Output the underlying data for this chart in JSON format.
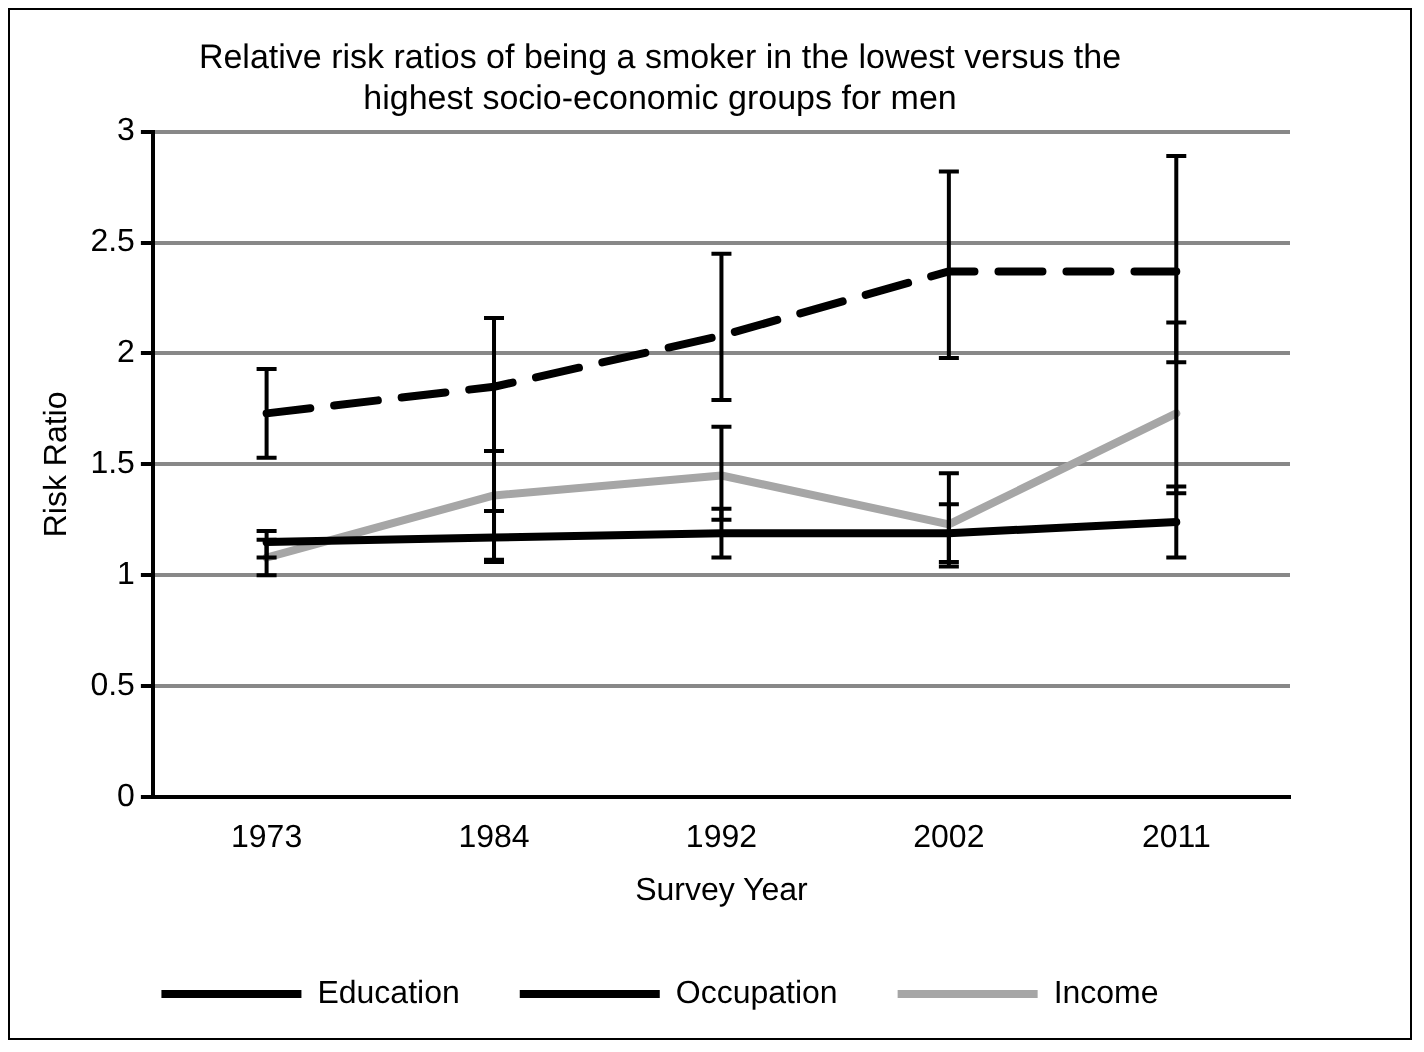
{
  "chart_data": {
    "type": "line",
    "title": "Relative risk ratios of being a smoker in the lowest versus the highest socio-economic groups for men",
    "xlabel": "Survey Year",
    "ylabel": "Risk Ratio",
    "categories": [
      "1973",
      "1984",
      "1992",
      "2002",
      "2011"
    ],
    "series": [
      {
        "name": "Education",
        "color": "#000000",
        "line_style": "dashed",
        "values": [
          1.73,
          1.85,
          2.08,
          2.37,
          2.37
        ],
        "errors": [
          [
            1.53,
            1.93
          ],
          [
            1.56,
            2.16
          ],
          [
            1.79,
            2.45
          ],
          [
            1.98,
            2.82
          ],
          [
            1.96,
            2.89
          ]
        ]
      },
      {
        "name": "Occupation",
        "color": "#000000",
        "line_style": "solid",
        "values": [
          1.15,
          1.17,
          1.19,
          1.19,
          1.24
        ],
        "errors": [
          [
            1.08,
            1.2
          ],
          [
            1.06,
            1.29
          ],
          [
            1.08,
            1.3
          ],
          [
            1.04,
            1.32
          ],
          [
            1.08,
            1.4
          ]
        ]
      },
      {
        "name": "Income",
        "color": "#a6a6a6",
        "line_style": "solid",
        "values": [
          1.08,
          1.36,
          1.45,
          1.23,
          1.73
        ],
        "errors": [
          [
            1.0,
            1.16
          ],
          [
            1.07,
            1.56
          ],
          [
            1.25,
            1.67
          ],
          [
            1.06,
            1.46
          ],
          [
            1.37,
            2.14
          ]
        ]
      }
    ],
    "ylim": [
      0,
      3
    ],
    "yticks": [
      0,
      0.5,
      1,
      1.5,
      2,
      2.5,
      3
    ],
    "grid": "y",
    "legend": "bottom",
    "marker": "none"
  }
}
